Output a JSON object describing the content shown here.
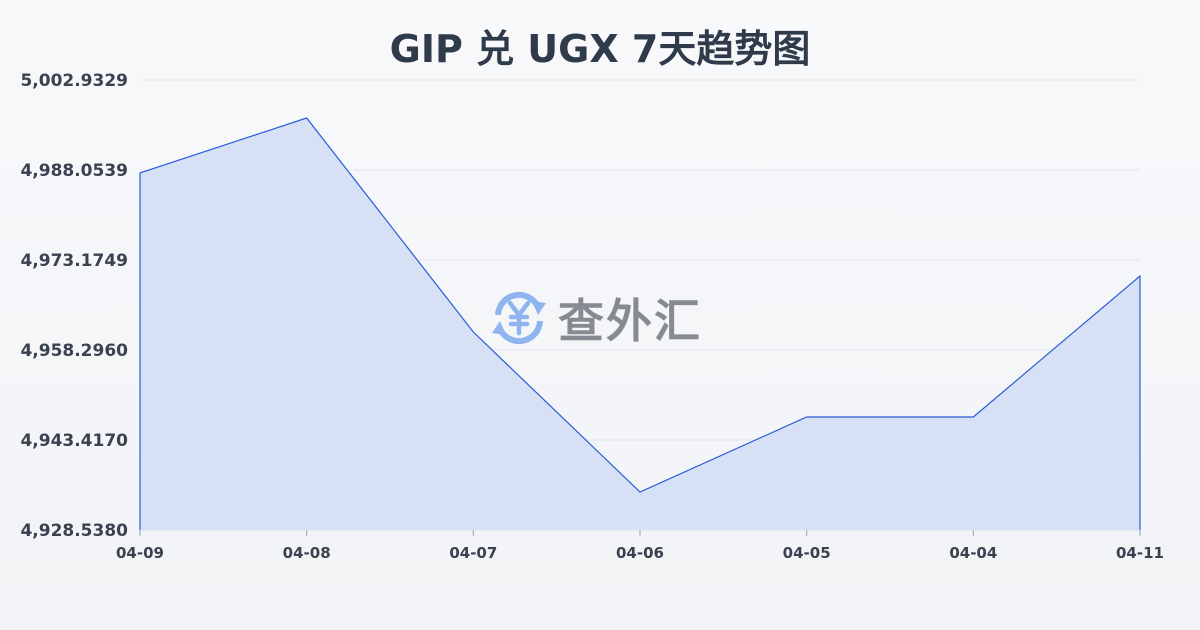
{
  "chart_data": {
    "type": "area",
    "title": "GIP 兑 UGX 7天趋势图",
    "categories": [
      "04-09",
      "04-08",
      "04-07",
      "04-06",
      "04-05",
      "04-04",
      "04-11"
    ],
    "values": [
      4987.56,
      4996.65,
      4961.27,
      4934.82,
      4947.22,
      4947.22,
      4970.53
    ],
    "yticks": [
      "5,002.9329",
      "4,988.0539",
      "4,973.1749",
      "4,958.2960",
      "4,943.4170",
      "4,928.5380"
    ],
    "ylim": [
      4928.538,
      5002.9329
    ],
    "grid": true,
    "line_color": "#2a5bd7",
    "fill_color": "#d6e1f5"
  },
  "watermark": {
    "text": "查外汇",
    "icon": "yen-exchange-icon",
    "color": "#8fb4f0"
  }
}
